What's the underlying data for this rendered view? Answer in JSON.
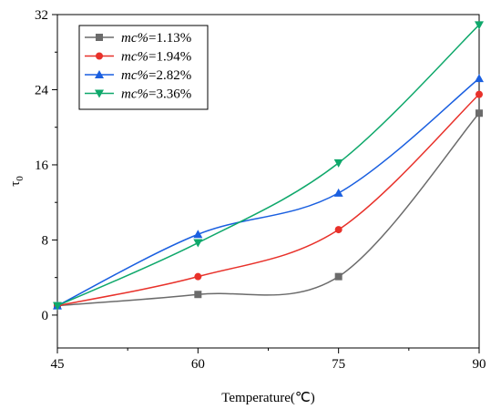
{
  "chart_data": {
    "type": "line",
    "xlabel": "Temperature(℃)",
    "ylabel": "τ",
    "ylabel_sub": "0",
    "xlim": [
      45,
      90
    ],
    "ylim": [
      -3.5,
      32
    ],
    "x_ticks": [
      45,
      60,
      75,
      90
    ],
    "y_ticks": [
      0,
      8,
      16,
      24,
      32
    ],
    "x_tick_labels": [
      "45",
      "60",
      "75",
      "90"
    ],
    "y_tick_labels": [
      "0",
      "8",
      "16",
      "24",
      "32"
    ],
    "grid": false,
    "legend_position": "top-left",
    "x": [
      45,
      60,
      75,
      90
    ],
    "series": [
      {
        "name": "mc%=1.13%",
        "name_var": "mc%",
        "name_value": "=1.13%",
        "values": [
          1.0,
          2.2,
          4.1,
          21.5
        ],
        "color": "#6b6b6b",
        "marker": "square"
      },
      {
        "name": "mc%=1.94%",
        "name_var": "mc%",
        "name_value": "=1.94%",
        "values": [
          1.0,
          4.1,
          9.1,
          23.5
        ],
        "color": "#e8312a",
        "marker": "circle"
      },
      {
        "name": "mc%=2.82%",
        "name_var": "mc%",
        "name_value": "=2.82%",
        "values": [
          1.0,
          8.6,
          13.0,
          25.2
        ],
        "color": "#1a5fe0",
        "marker": "triangle-up"
      },
      {
        "name": "mc%=3.36%",
        "name_var": "mc%",
        "name_value": "=3.36%",
        "values": [
          1.0,
          7.7,
          16.2,
          30.9
        ],
        "color": "#0fa86b",
        "marker": "triangle-down"
      }
    ]
  }
}
